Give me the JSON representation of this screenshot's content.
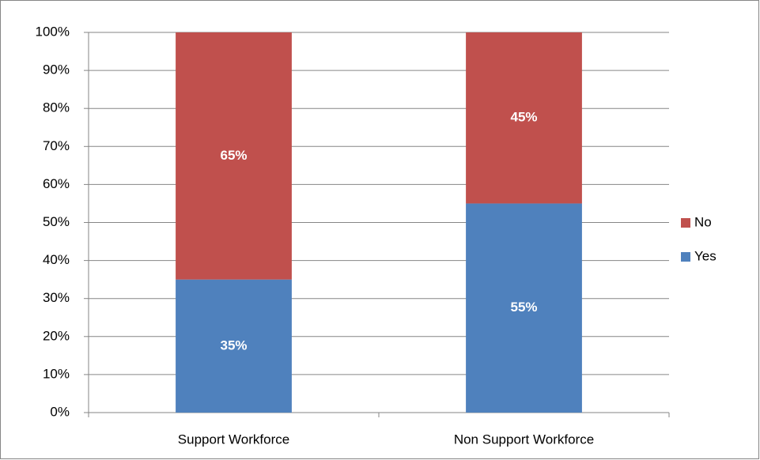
{
  "chart_data": {
    "type": "stacked_bar",
    "categories": [
      "Support Workforce",
      "Non Support Workforce"
    ],
    "series": [
      {
        "name": "Yes",
        "color": "#4f81bd",
        "values": [
          35,
          55
        ],
        "value_labels": [
          "35%",
          "55%"
        ]
      },
      {
        "name": "No",
        "color": "#c0504d",
        "values": [
          65,
          45
        ],
        "value_labels": [
          "65%",
          "45%"
        ]
      }
    ],
    "ylim": [
      0,
      100
    ],
    "yticks": [
      {
        "value": 0,
        "label": "0%"
      },
      {
        "value": 10,
        "label": "10%"
      },
      {
        "value": 20,
        "label": "20%"
      },
      {
        "value": 30,
        "label": "30%"
      },
      {
        "value": 40,
        "label": "40%"
      },
      {
        "value": 50,
        "label": "50%"
      },
      {
        "value": 60,
        "label": "60%"
      },
      {
        "value": 70,
        "label": "70%"
      },
      {
        "value": 80,
        "label": "80%"
      },
      {
        "value": 90,
        "label": "90%"
      },
      {
        "value": 100,
        "label": "100%"
      }
    ],
    "grid": true,
    "legend": "right"
  }
}
